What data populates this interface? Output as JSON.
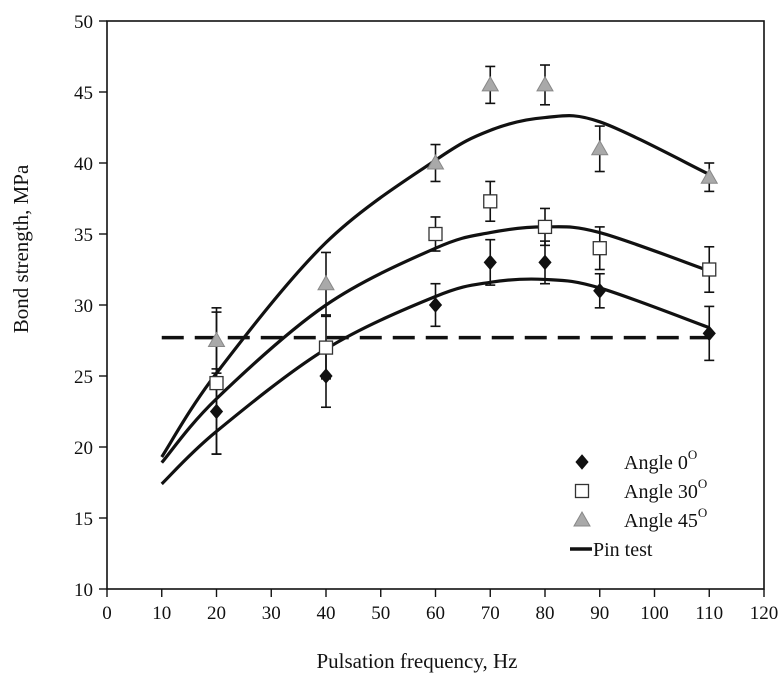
{
  "chart_data": {
    "type": "scatter",
    "title": "",
    "xlabel": "Pulsation frequency, Hz",
    "ylabel": "Bond strength, MPa",
    "xlim": [
      0,
      120
    ],
    "ylim": [
      10,
      50
    ],
    "xticks": [
      0,
      10,
      20,
      30,
      40,
      50,
      60,
      70,
      80,
      90,
      100,
      110,
      120
    ],
    "yticks": [
      10,
      15,
      20,
      25,
      30,
      35,
      40,
      45,
      50
    ],
    "grid": false,
    "legend_position": "bottom-right",
    "series": [
      {
        "name": "Angle 0",
        "name_superscript": "O",
        "marker": "diamond",
        "color": "#111111",
        "x": [
          20,
          40,
          60,
          70,
          80,
          90,
          110
        ],
        "y": [
          22.5,
          25.0,
          30.0,
          33.0,
          33.0,
          31.0,
          28.0
        ],
        "error": [
          3.0,
          2.2,
          1.5,
          1.6,
          1.5,
          1.2,
          1.9
        ],
        "fit_x": [
          10,
          20,
          40,
          60,
          70,
          80,
          90,
          110
        ],
        "fit_y": [
          17.4,
          21.1,
          26.9,
          30.6,
          31.6,
          31.8,
          31.2,
          28.4
        ]
      },
      {
        "name": "Angle 30",
        "name_superscript": "O",
        "marker": "square-open",
        "color": "#111111",
        "x": [
          20,
          40,
          60,
          70,
          80,
          90,
          110
        ],
        "y": [
          24.5,
          27.0,
          35.0,
          37.3,
          35.5,
          34.0,
          32.5
        ],
        "error": [
          5.0,
          2.2,
          1.2,
          1.4,
          1.3,
          1.5,
          1.6
        ],
        "fit_x": [
          10,
          20,
          40,
          60,
          70,
          80,
          90,
          110
        ],
        "fit_y": [
          18.9,
          23.4,
          30.0,
          34.0,
          35.1,
          35.5,
          35.1,
          32.4
        ]
      },
      {
        "name": "Angle 45",
        "name_superscript": "O",
        "marker": "triangle",
        "color": "#a9a9a9",
        "x": [
          20,
          40,
          60,
          70,
          80,
          90,
          110
        ],
        "y": [
          27.5,
          31.5,
          40.0,
          45.5,
          45.5,
          41.0,
          39.0
        ],
        "error": [
          2.3,
          2.2,
          1.3,
          1.3,
          1.4,
          1.6,
          1.0
        ],
        "fit_x": [
          10,
          20,
          40,
          60,
          70,
          80,
          90,
          110
        ],
        "fit_y": [
          19.3,
          25.2,
          34.4,
          40.2,
          42.3,
          43.2,
          42.9,
          39.2
        ]
      },
      {
        "name": "Pin test",
        "marker": "dashed-line",
        "color": "#111111",
        "x": [
          10,
          110
        ],
        "y": [
          27.7,
          27.7
        ]
      }
    ]
  }
}
